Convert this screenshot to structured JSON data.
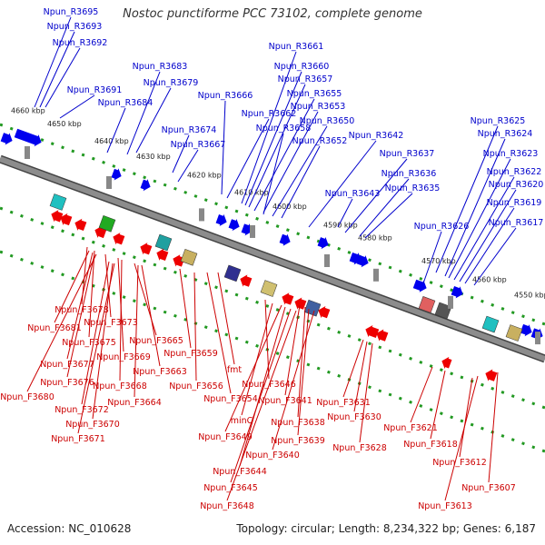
{
  "title": "Nostoc punctiforme PCC 73102, complete genome",
  "accession_label": "Accession: NC_010628",
  "summary": "Topology: circular; Length: 8,234,322 bp; Genes: 6,187",
  "colors": {
    "backbone": "#8c8c8c",
    "backbone_edge": "#444444",
    "dotted_track": "#229922",
    "forward_gene": "#0000ee",
    "reverse_gene": "#ee0000",
    "forward_label": "#0000cc",
    "reverse_label": "#cc0000"
  },
  "kbp_ticks": [
    "4660 kbp",
    "4650 kbp",
    "4640 kbp",
    "4630 kbp",
    "4620 kbp",
    "4610 kbp",
    "4600 kbp",
    "4590 kbp",
    "4580 kbp",
    "4570 kbp",
    "4560 kbp",
    "4550 kbp"
  ],
  "forward_labels": [
    "Npun_R3695",
    "Npun_R3693",
    "Npun_R3692",
    "Npun_R3691",
    "Npun_R3684",
    "Npun_R3683",
    "Npun_R3679",
    "Npun_R3674",
    "Npun_R3667",
    "Npun_R3666",
    "Npun_R3662",
    "Npun_R3661",
    "Npun_R3660",
    "Npun_R3657",
    "Npun_R3655",
    "Npun_R3653",
    "Npun_R3658",
    "Npun_R3650",
    "Npun_R3652",
    "Npun_R3642",
    "Npun_R3637",
    "Npun_R3636",
    "Npun_R3635",
    "Npun_R3643",
    "Npun_R3626",
    "Npun_R3625",
    "Npun_R3624",
    "Npun_R3623",
    "Npun_R3622",
    "Npun_R3620",
    "Npun_R3619",
    "Npun_R3617"
  ],
  "reverse_labels": [
    "Npun_F3678",
    "Npun_F3681",
    "Npun_F3673",
    "Npun_F3675",
    "Npun_F3677",
    "Npun_F3676",
    "Npun_F3680",
    "Npun_F3665",
    "Npun_F3669",
    "Npun_F3668",
    "Npun_F3663",
    "Npun_F3672",
    "Npun_F3664",
    "Npun_F3670",
    "Npun_F3671",
    "Npun_F3659",
    "Npun_F3656",
    "fmt",
    "Npun_F3654",
    "Npun_F3646",
    "minC",
    "Npun_F3649",
    "Npun_F3644",
    "Npun_F3645",
    "Npun_F3648",
    "Npun_F3641",
    "Npun_F3638",
    "Npun_F3639",
    "Npun_F3640",
    "Npun_F3631",
    "Npun_F3630",
    "Npun_F3628",
    "Npun_F3621",
    "Npun_F3618",
    "Npun_F3612",
    "Npun_F3607",
    "Npun_F3613"
  ]
}
